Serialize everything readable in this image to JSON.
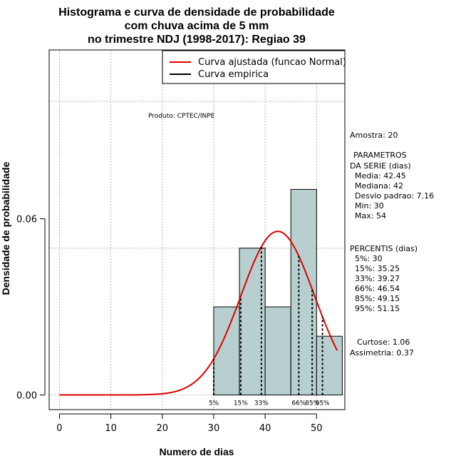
{
  "chart_data": {
    "type": "bar",
    "title_lines": [
      "Histograma e curva de densidade de probabilidade",
      "com chuva acima de 5 mm",
      "no trimestre NDJ (1998-2017): Regiao 39"
    ],
    "xlabel": "Numero de dias",
    "ylabel": "Densidade de probabilidade",
    "xlim": [
      -2,
      55.5
    ],
    "ylim": [
      -0.005,
      0.1175
    ],
    "x_ticks": [
      0,
      10,
      20,
      30,
      40,
      50
    ],
    "x_tick_labels": [
      "0",
      "10",
      "20",
      "30",
      "40",
      "50"
    ],
    "y_ticks": [
      0.0,
      0.06
    ],
    "y_tick_labels": [
      "0.00",
      "0.06"
    ],
    "grid_x": [
      0,
      10,
      20,
      30,
      40,
      50
    ],
    "grid_y": [
      0.0,
      0.05,
      0.1
    ],
    "bar_color": "#b7cfcf",
    "histogram": [
      {
        "x0": 30,
        "x1": 35,
        "density": 0.03
      },
      {
        "x0": 35,
        "x1": 40,
        "density": 0.05
      },
      {
        "x0": 40,
        "x1": 45,
        "density": 0.03
      },
      {
        "x0": 45,
        "x1": 50,
        "density": 0.07
      },
      {
        "x0": 50,
        "x1": 55,
        "density": 0.02
      }
    ],
    "normal_fit": {
      "mean": 42.45,
      "sd": 7.16,
      "x_from": 0,
      "x_to": 54,
      "color": "#e00000"
    },
    "percentile_lines": [
      {
        "x": 30,
        "label": "5%"
      },
      {
        "x": 35.25,
        "label": "15%"
      },
      {
        "x": 39.27,
        "label": "33%"
      },
      {
        "x": 46.54,
        "label": "66%"
      },
      {
        "x": 49.15,
        "label": "85%"
      },
      {
        "x": 51.15,
        "label": "95%"
      }
    ],
    "legend": [
      {
        "label": "Curva ajustada (funcao Normal)",
        "color": "#e00000"
      },
      {
        "label": "Curva empirica",
        "color": "#000000"
      }
    ],
    "product_note": "Produto: CPTEC/INPE",
    "side_text": [
      "Amostra: 20",
      "PARAMETROS",
      "DA SERIE (dias)",
      "Media: 42.45",
      "Mediana: 42",
      "Desvio padrao: 7.16",
      "Min: 30",
      "Max: 54",
      "PERCENTIS (dias)",
      "5%: 30",
      "15%: 35.25",
      "33%: 39.27",
      "66%: 46.54",
      "85%: 49.15",
      "95%: 51.15",
      "Curtose: 1.06",
      "Assimetria: 0.37"
    ]
  }
}
